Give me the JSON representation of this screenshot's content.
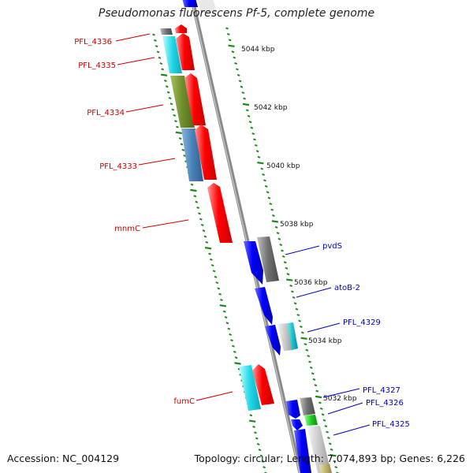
{
  "title": "Pseudomonas fluorescens Pf-5, complete genome",
  "footer": {
    "accession": "Accession: NC_004129",
    "summary": "Topology: circular; Length: 7,074,893 bp; Genes: 6,226"
  },
  "scale_labels": [
    "5044 kbp",
    "5042 kbp",
    "5040 kbp",
    "5038 kbp",
    "5036 kbp",
    "5034 kbp",
    "5032 kbp"
  ],
  "left_labels": [
    "PFL_4336",
    "PFL_4335",
    "PFL_4334",
    "PFL_4333",
    "mnmC",
    "fumC"
  ],
  "right_labels": [
    "pvdS",
    "atoB-2",
    "PFL_4329",
    "PFL_4327",
    "PFL_4326",
    "PFL_4325"
  ],
  "colors": {
    "reverse_label": "#cc0000",
    "forward_label": "#0000bb",
    "reverse_gene": "#ff0000",
    "forward_gene": "#0000ff",
    "tick": "#1a8a1a",
    "backbone": "#8a8a8a"
  }
}
